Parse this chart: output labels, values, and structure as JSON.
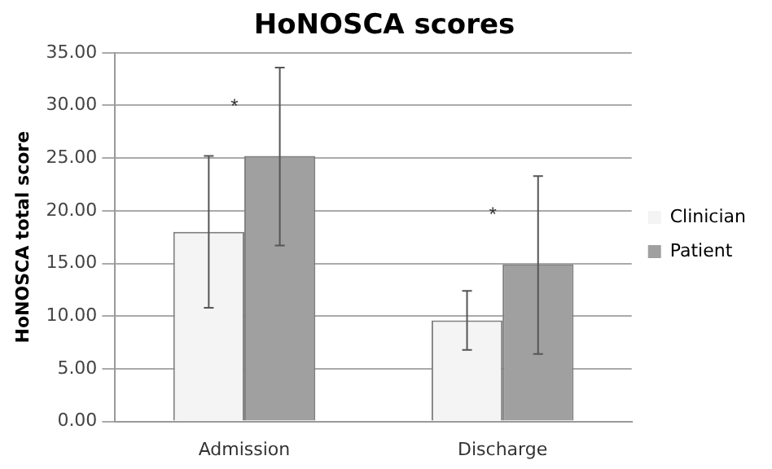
{
  "chart_data": {
    "type": "bar",
    "title": "HoNOSCA scores",
    "ylabel": "HoNOSCA total score",
    "categories": [
      "Admission",
      "Discharge"
    ],
    "series": [
      {
        "name": "Clinician",
        "color": "#f4f4f4",
        "values": [
          18.0,
          9.6
        ],
        "errors": [
          [
            10.8,
            25.2
          ],
          [
            6.8,
            12.4
          ]
        ]
      },
      {
        "name": "Patient",
        "color": "#a0a0a0",
        "values": [
          25.2,
          14.9
        ],
        "errors": [
          [
            16.7,
            33.6
          ],
          [
            6.4,
            23.3
          ]
        ]
      }
    ],
    "ylim": [
      0,
      35
    ],
    "yticks": [
      {
        "value": 0,
        "label": "0.00"
      },
      {
        "value": 5,
        "label": "5.00"
      },
      {
        "value": 10,
        "label": "10.00"
      },
      {
        "value": 15,
        "label": "15.00"
      },
      {
        "value": 20,
        "label": "20.00"
      },
      {
        "value": 25,
        "label": "25.00"
      },
      {
        "value": 30,
        "label": "30.00"
      },
      {
        "value": 35,
        "label": "35.00"
      }
    ],
    "annotations": [
      "*",
      "*"
    ],
    "grid": "y",
    "legend": "right"
  }
}
